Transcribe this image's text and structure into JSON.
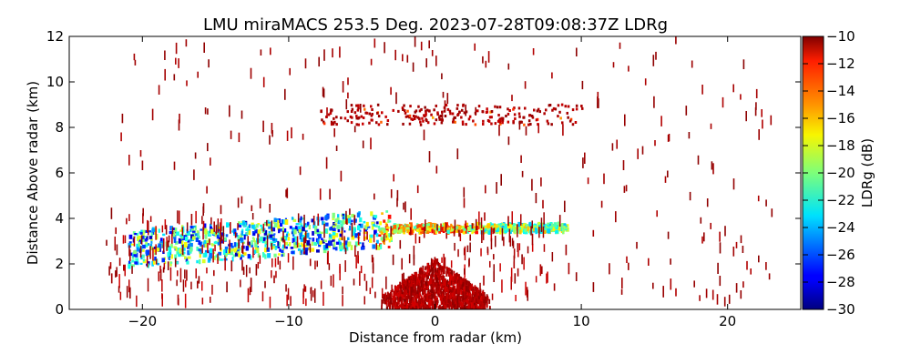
{
  "chart_data": {
    "type": "heatmap",
    "title": "LMU miraMACS 253.5 Deg. 2023-07-28T09:08:37Z  LDRg",
    "xlabel": "Distance from radar (km)",
    "ylabel": "Distance Above radar  (km)",
    "xlim": [
      -25,
      25
    ],
    "ylim": [
      0,
      12
    ],
    "xticks": [
      -20,
      -10,
      0,
      10,
      20
    ],
    "xtick_labels": [
      "−20",
      "−10",
      "0",
      "10",
      "20"
    ],
    "yticks": [
      0,
      2,
      4,
      6,
      8,
      10,
      12
    ],
    "ytick_labels": [
      "0",
      "2",
      "4",
      "6",
      "8",
      "10",
      "12"
    ],
    "colorbar": {
      "label": "LDRg (dB)",
      "range": [
        -30,
        -10
      ],
      "ticks": [
        -30,
        -28,
        -26,
        -24,
        -22,
        -20,
        -18,
        -16,
        -14,
        -12,
        -10
      ],
      "tick_labels": [
        "−30",
        "−28",
        "−26",
        "−24",
        "−22",
        "−20",
        "−18",
        "−16",
        "−14",
        "−12",
        "−10"
      ],
      "colormap": "jet"
    },
    "regions": [
      {
        "description": "dense scatter near radar",
        "x": [
          -3,
          3
        ],
        "y": [
          0,
          2
        ],
        "ldr_range": [
          -12,
          -10
        ]
      },
      {
        "description": "low-level cloud band",
        "x": [
          -21,
          9
        ],
        "y": [
          1,
          4
        ],
        "ldr_range": [
          -28,
          -14
        ]
      },
      {
        "description": "upper layer",
        "x": [
          -8,
          10
        ],
        "y": [
          8,
          9
        ],
        "ldr_range": [
          -14,
          -10
        ]
      },
      {
        "description": "sparse insects/clutter",
        "x": [
          -23,
          23
        ],
        "y": [
          0,
          12
        ],
        "ldr_range": [
          -11,
          -10
        ]
      }
    ]
  }
}
